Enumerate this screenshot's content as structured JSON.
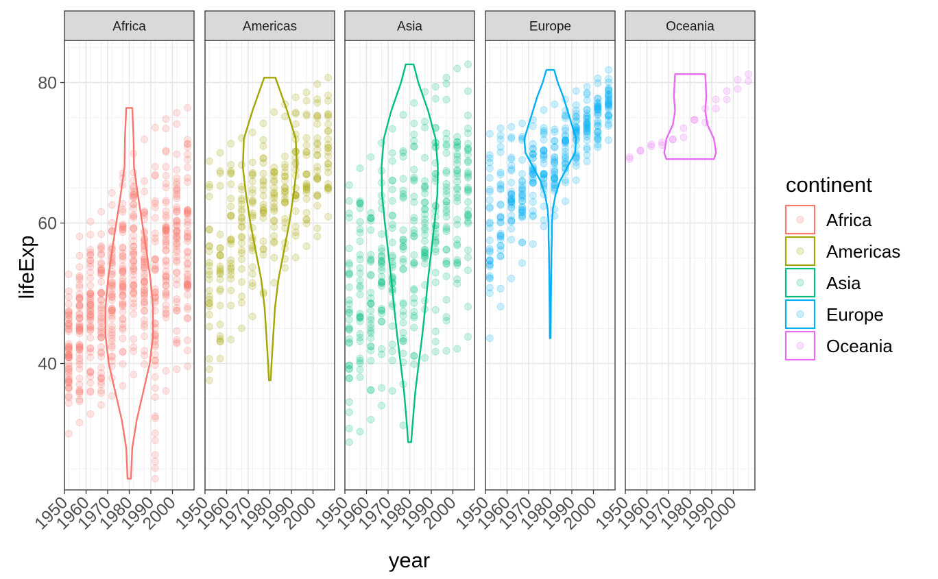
{
  "chart_data": {
    "type": "scatter",
    "overlay": "violin",
    "facet_by": "continent",
    "xlabel": "year",
    "ylabel": "lifeExp",
    "xlim": [
      1950,
      2010
    ],
    "ylim": [
      22,
      86
    ],
    "x_ticks": [
      1950,
      1960,
      1970,
      1980,
      1990,
      2000
    ],
    "x_tick_labels": [
      "1950",
      "1960",
      "1970",
      "1980",
      "1990",
      "2000"
    ],
    "y_ticks": [
      40,
      60,
      80
    ],
    "y_tick_labels": [
      "40",
      "60",
      "80"
    ],
    "years": [
      1952,
      1957,
      1962,
      1967,
      1972,
      1977,
      1982,
      1987,
      1992,
      1997,
      2002,
      2007
    ],
    "point_alpha": 0.2,
    "grid": true,
    "legend": {
      "title": "continent",
      "position": "right",
      "entries": [
        "Africa",
        "Americas",
        "Asia",
        "Europe",
        "Oceania"
      ]
    },
    "panels": [
      {
        "name": "Africa",
        "color": "#F8766D",
        "count": 52,
        "ranges": [
          [
            30.0,
            52.7
          ],
          [
            31.6,
            58.1
          ],
          [
            32.8,
            60.2
          ],
          [
            34.1,
            61.6
          ],
          [
            35.4,
            64.3
          ],
          [
            36.8,
            67.1
          ],
          [
            38.4,
            69.9
          ],
          [
            39.9,
            71.9
          ],
          [
            23.6,
            73.6
          ],
          [
            36.1,
            74.8
          ],
          [
            39.2,
            75.7
          ],
          [
            39.6,
            76.4
          ]
        ],
        "violin": {
          "y": [
            23.6,
            28,
            32,
            36,
            40,
            44,
            48,
            52,
            56,
            60,
            64,
            68,
            72,
            76.4
          ],
          "half_width": [
            0.8,
            1.4,
            3.5,
            6.5,
            9.5,
            11.0,
            11.0,
            9.8,
            8.0,
            6.0,
            4.0,
            2.2,
            2.0,
            1.4
          ]
        }
      },
      {
        "name": "Americas",
        "color": "#A3A500",
        "count": 25,
        "ranges": [
          [
            37.6,
            68.8
          ],
          [
            40.7,
            70.0
          ],
          [
            43.4,
            71.3
          ],
          [
            45.0,
            72.1
          ],
          [
            46.7,
            72.9
          ],
          [
            49.9,
            74.2
          ],
          [
            51.5,
            75.8
          ],
          [
            53.6,
            76.9
          ],
          [
            55.1,
            77.9
          ],
          [
            56.7,
            78.6
          ],
          [
            58.1,
            79.8
          ],
          [
            60.9,
            80.7
          ]
        ],
        "violin": {
          "y": [
            37.6,
            40,
            44,
            48,
            52,
            56,
            60,
            64,
            68,
            72,
            76,
            80.7
          ],
          "half_width": [
            0.4,
            0.8,
            1.6,
            2.4,
            4.0,
            6.5,
            9.0,
            11.0,
            12.5,
            12.0,
            8.0,
            2.6
          ]
        }
      },
      {
        "name": "Asia",
        "color": "#00BF7D",
        "count": 33,
        "ranges": [
          [
            28.8,
            65.4
          ],
          [
            30.3,
            67.8
          ],
          [
            32.0,
            69.4
          ],
          [
            34.0,
            71.4
          ],
          [
            36.1,
            73.4
          ],
          [
            31.2,
            75.4
          ],
          [
            39.9,
            77.1
          ],
          [
            40.8,
            78.7
          ],
          [
            41.7,
            79.4
          ],
          [
            41.8,
            80.7
          ],
          [
            42.1,
            82.0
          ],
          [
            43.8,
            82.6
          ]
        ],
        "violin": {
          "y": [
            28.8,
            32,
            36,
            40,
            44,
            48,
            52,
            56,
            60,
            64,
            68,
            72,
            76,
            80,
            82.6
          ],
          "half_width": [
            0.7,
            1.5,
            2.6,
            4.2,
            5.8,
            7.2,
            8.5,
            10.0,
            11.5,
            12.8,
            13.0,
            12.0,
            8.5,
            4.0,
            1.8
          ]
        }
      },
      {
        "name": "Europe",
        "color": "#00B0F6",
        "count": 30,
        "ranges": [
          [
            43.6,
            72.7
          ],
          [
            48.1,
            73.5
          ],
          [
            52.1,
            73.7
          ],
          [
            54.3,
            74.2
          ],
          [
            57.0,
            74.7
          ],
          [
            59.5,
            76.1
          ],
          [
            61.0,
            76.9
          ],
          [
            63.1,
            77.6
          ],
          [
            66.1,
            78.8
          ],
          [
            68.8,
            79.4
          ],
          [
            70.8,
            80.6
          ],
          [
            71.8,
            81.8
          ]
        ],
        "violin": {
          "y": [
            43.6,
            48,
            52,
            56,
            58,
            60,
            62,
            64,
            66,
            68,
            70,
            72,
            74,
            76,
            78,
            80,
            81.8
          ],
          "half_width": [
            0.2,
            0.3,
            0.4,
            0.6,
            0.8,
            0.8,
            1.2,
            2.4,
            4.5,
            8.0,
            11.5,
            12.0,
            10.0,
            8.0,
            6.0,
            3.5,
            1.8
          ]
        }
      },
      {
        "name": "Oceania",
        "color": "#E76BF3",
        "count": 2,
        "ranges": [
          [
            69.1,
            69.4
          ],
          [
            70.3,
            70.3
          ],
          [
            70.9,
            71.2
          ],
          [
            71.1,
            71.5
          ],
          [
            71.9,
            71.9
          ],
          [
            72.2,
            73.5
          ],
          [
            74.7,
            74.7
          ],
          [
            74.3,
            76.3
          ],
          [
            76.3,
            77.6
          ],
          [
            77.6,
            78.8
          ],
          [
            79.1,
            80.4
          ],
          [
            80.2,
            81.2
          ]
        ],
        "violin": {
          "y": [
            69.1,
            70,
            72,
            74,
            76,
            78,
            80,
            81.2
          ],
          "half_width": [
            11.0,
            12.0,
            11.0,
            8.0,
            7.0,
            7.5,
            7.2,
            7.0
          ]
        }
      }
    ]
  }
}
